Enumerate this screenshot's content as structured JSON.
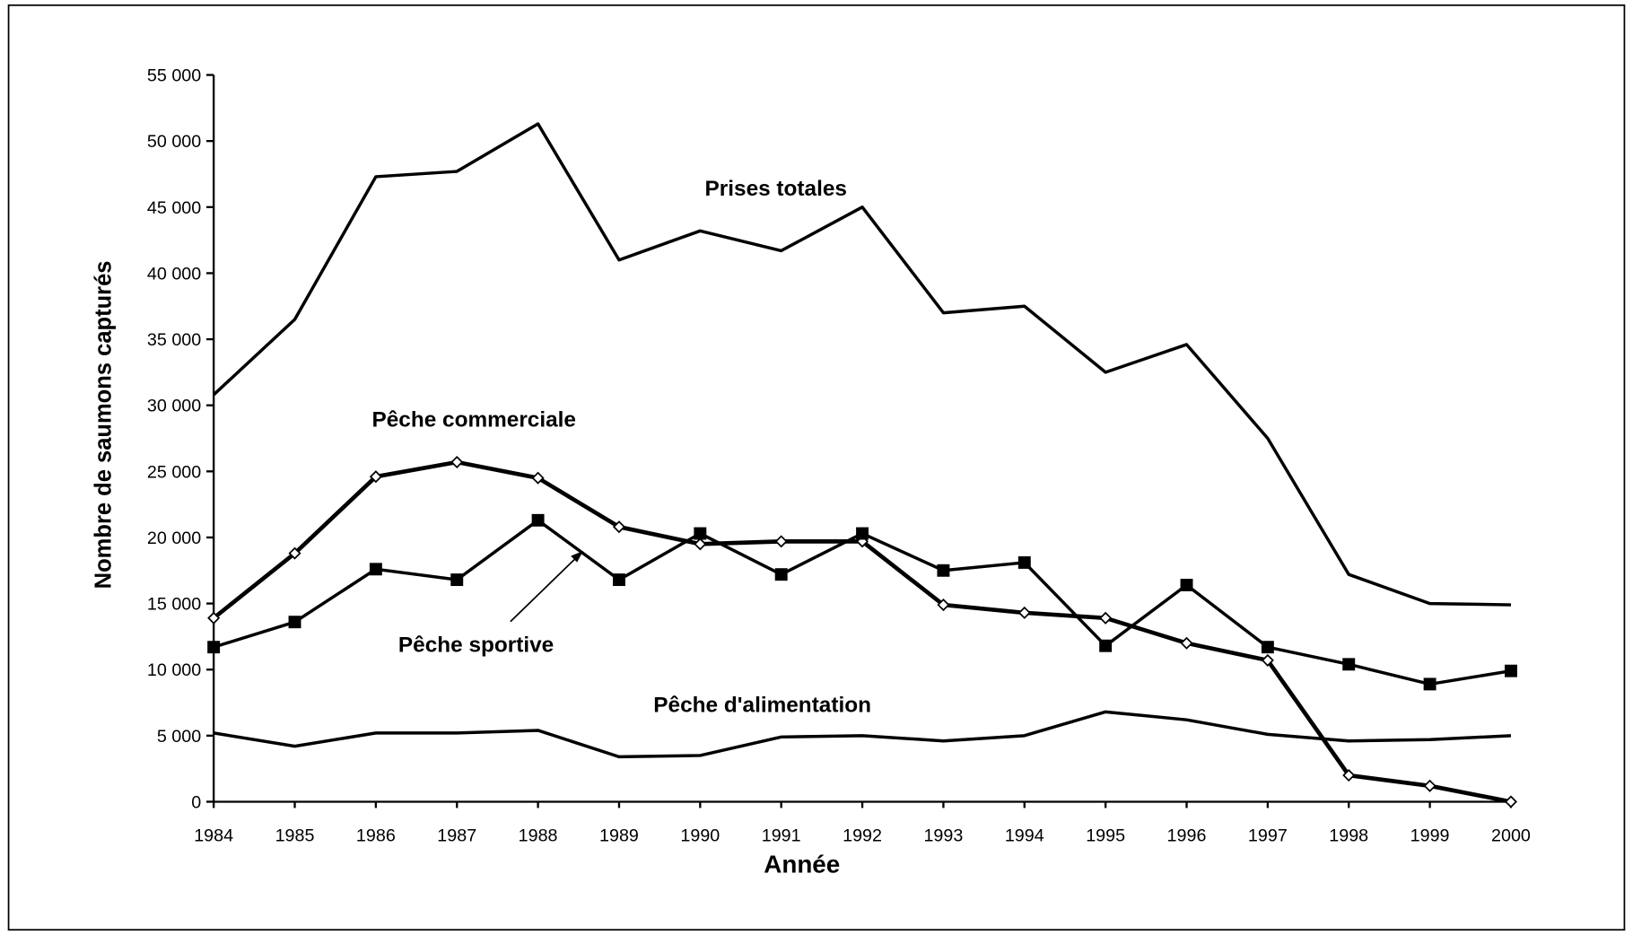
{
  "chart_data": {
    "type": "line",
    "x_label": "Année",
    "y_label": "Nombre de saumons capturés",
    "x": [
      1984,
      1985,
      1986,
      1987,
      1988,
      1989,
      1990,
      1991,
      1992,
      1993,
      1994,
      1995,
      1996,
      1997,
      1998,
      1999,
      2000
    ],
    "xlim": [
      1984,
      2000
    ],
    "xticks": [
      1984,
      1985,
      1986,
      1987,
      1988,
      1989,
      1990,
      1991,
      1992,
      1993,
      1994,
      1995,
      1996,
      1997,
      1998,
      1999,
      2000
    ],
    "ylim": [
      0,
      55000
    ],
    "yticks": [
      0,
      {
        "value": 5000,
        "label": "5 000"
      },
      {
        "value": 10000,
        "label": "10 000"
      },
      {
        "value": 15000,
        "label": "15 000"
      },
      {
        "value": 20000,
        "label": "20 000"
      },
      {
        "value": 25000,
        "label": "25 000"
      },
      {
        "value": 30000,
        "label": "30 000"
      },
      {
        "value": 35000,
        "label": "35 000"
      },
      {
        "value": 40000,
        "label": "40 000"
      },
      {
        "value": 45000,
        "label": "45 000"
      },
      {
        "value": 50000,
        "label": "50 000"
      },
      {
        "value": 55000,
        "label": "55 000"
      }
    ],
    "series": [
      {
        "name": "Prises totales",
        "color": "#000000",
        "marker": "none",
        "values": [
          30800,
          36500,
          47300,
          47700,
          51300,
          41000,
          43200,
          41700,
          45000,
          37000,
          37500,
          32500,
          34600,
          27500,
          17200,
          15000,
          14900
        ]
      },
      {
        "name": "Pêche commerciale",
        "color": "#000000",
        "marker": "diamond",
        "values": [
          13900,
          18800,
          24600,
          25700,
          24500,
          20800,
          19500,
          19700,
          19700,
          14900,
          14300,
          13900,
          12000,
          10700,
          2000,
          1200,
          0
        ]
      },
      {
        "name": "Pêche sportive",
        "color": "#000000",
        "marker": "square",
        "values": [
          11700,
          13600,
          17600,
          16800,
          21300,
          16800,
          20300,
          17200,
          20300,
          17500,
          18100,
          11800,
          16400,
          11700,
          10400,
          8900,
          9900
        ]
      },
      {
        "name": "Pêche d'alimentation",
        "color": "#000000",
        "marker": "none",
        "values": [
          5200,
          4200,
          5200,
          5200,
          5400,
          3400,
          3500,
          4900,
          5000,
          4600,
          5000,
          6800,
          6200,
          5100,
          4600,
          4700,
          5000
        ]
      }
    ]
  }
}
